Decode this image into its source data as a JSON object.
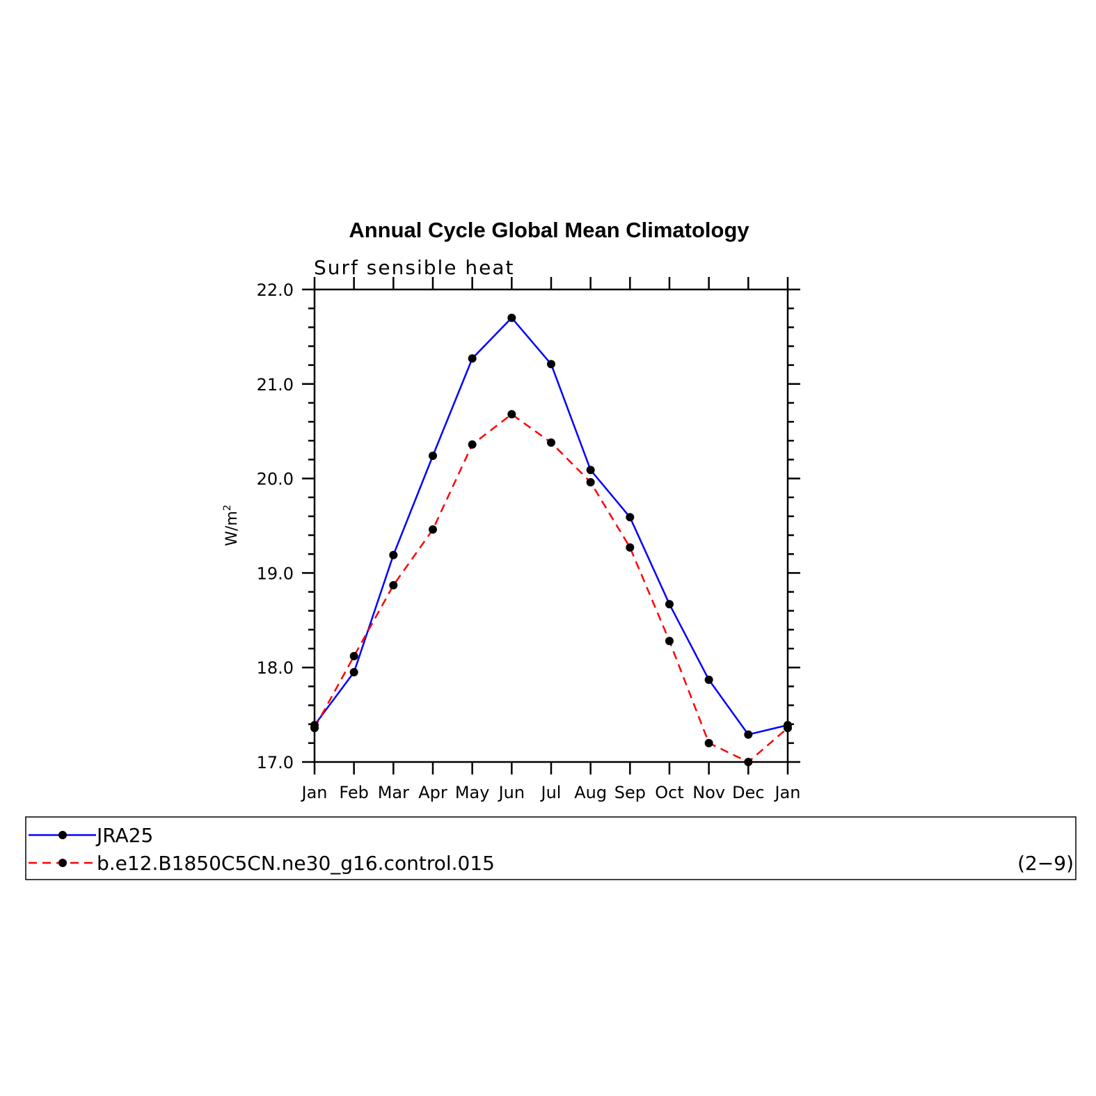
{
  "chart_data": {
    "type": "line",
    "title": "Annual Cycle Global Mean Climatology",
    "subtitle": "Surf sensible heat",
    "ylabel": "W/m",
    "ylabel_sup": "2",
    "xlabel": "",
    "categories": [
      "Jan",
      "Feb",
      "Mar",
      "Apr",
      "May",
      "Jun",
      "Jul",
      "Aug",
      "Sep",
      "Oct",
      "Nov",
      "Dec",
      "Jan"
    ],
    "ylim": [
      17.0,
      22.0
    ],
    "yticks": [
      "17.0",
      "18.0",
      "19.0",
      "20.0",
      "21.0",
      "22.0"
    ],
    "grid": false,
    "legend_position": "bottom",
    "series": [
      {
        "name": "JRA25",
        "color": "#0000ff",
        "dash": "solid",
        "values": [
          17.39,
          17.95,
          19.19,
          20.24,
          21.27,
          21.7,
          21.21,
          20.09,
          19.59,
          18.67,
          17.87,
          17.29,
          17.39
        ]
      },
      {
        "name": "b.e12.B1850C5CN.ne30_g16.control.015",
        "color": "#ff0000",
        "dash": "dashed",
        "values": [
          17.36,
          18.12,
          18.87,
          19.46,
          20.36,
          20.68,
          20.38,
          19.96,
          19.27,
          18.28,
          17.2,
          17.0,
          17.36
        ]
      }
    ],
    "annotation": "(2−9)"
  }
}
